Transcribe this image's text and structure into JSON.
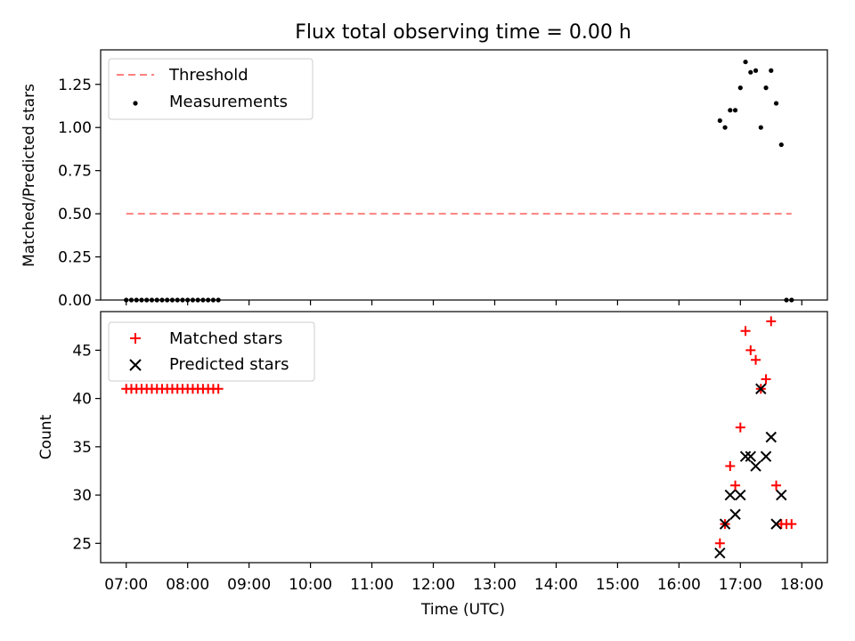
{
  "figure": {
    "title": "Flux total observing time = 0.00 h"
  },
  "chart_data": [
    {
      "type": "scatter",
      "ylabel": "Matched/Predicted stars",
      "ylim": [
        0,
        1.45
      ],
      "yticks": [
        0.0,
        0.25,
        0.5,
        0.75,
        1.0,
        1.25
      ],
      "ytick_labels": [
        "0.00",
        "0.25",
        "0.50",
        "0.75",
        "1.00",
        "1.25"
      ],
      "legend": {
        "placement": "top-left",
        "entries": [
          "Threshold",
          "Measurements"
        ]
      },
      "threshold": {
        "name": "Threshold",
        "y": 0.5,
        "x_start": "07:00",
        "x_end": "17:50",
        "color": "#ff8080"
      },
      "series": [
        {
          "name": "Measurements",
          "color": "#000000",
          "x": [
            "07:00",
            "07:05",
            "07:10",
            "07:15",
            "07:20",
            "07:25",
            "07:30",
            "07:35",
            "07:40",
            "07:45",
            "07:50",
            "07:55",
            "08:00",
            "08:05",
            "08:10",
            "08:15",
            "08:20",
            "08:25",
            "08:30",
            "16:40",
            "16:45",
            "16:50",
            "16:55",
            "17:00",
            "17:05",
            "17:10",
            "17:15",
            "17:20",
            "17:25",
            "17:30",
            "17:35",
            "17:40",
            "17:45",
            "17:50"
          ],
          "y": [
            0,
            0,
            0,
            0,
            0,
            0,
            0,
            0,
            0,
            0,
            0,
            0,
            0,
            0,
            0,
            0,
            0,
            0,
            0,
            1.04,
            1.0,
            1.1,
            1.1,
            1.23,
            1.38,
            1.32,
            1.33,
            1.0,
            1.23,
            1.33,
            1.14,
            0.9,
            0,
            0
          ]
        }
      ]
    },
    {
      "type": "scatter",
      "ylabel": "Count",
      "xlabel": "Time (UTC)",
      "ylim": [
        23,
        49
      ],
      "yticks": [
        25,
        30,
        35,
        40,
        45
      ],
      "ytick_labels": [
        "25",
        "30",
        "35",
        "40",
        "45"
      ],
      "xlim": [
        "06:35",
        "18:25"
      ],
      "xticks": [
        "07:00",
        "08:00",
        "09:00",
        "10:00",
        "11:00",
        "12:00",
        "13:00",
        "14:00",
        "15:00",
        "16:00",
        "17:00",
        "18:00"
      ],
      "legend": {
        "placement": "top-left",
        "entries": [
          "Matched stars",
          "Predicted stars"
        ]
      },
      "series": [
        {
          "name": "Matched stars",
          "marker": "plus",
          "color": "#ff0000",
          "x": [
            "07:00",
            "07:05",
            "07:10",
            "07:15",
            "07:20",
            "07:25",
            "07:30",
            "07:35",
            "07:40",
            "07:45",
            "07:50",
            "07:55",
            "08:00",
            "08:05",
            "08:10",
            "08:15",
            "08:20",
            "08:25",
            "08:30",
            "16:40",
            "16:45",
            "16:50",
            "16:55",
            "17:00",
            "17:05",
            "17:10",
            "17:15",
            "17:20",
            "17:25",
            "17:30",
            "17:35",
            "17:40",
            "17:45",
            "17:50"
          ],
          "y": [
            41,
            41,
            41,
            41,
            41,
            41,
            41,
            41,
            41,
            41,
            41,
            41,
            41,
            41,
            41,
            41,
            41,
            41,
            41,
            25,
            27,
            33,
            31,
            37,
            47,
            45,
            44,
            41,
            42,
            48,
            31,
            27,
            27,
            27
          ]
        },
        {
          "name": "Predicted stars",
          "marker": "x",
          "color": "#000000",
          "x": [
            "16:40",
            "16:45",
            "16:50",
            "16:55",
            "17:00",
            "17:05",
            "17:10",
            "17:15",
            "17:20",
            "17:25",
            "17:30",
            "17:35",
            "17:40"
          ],
          "y": [
            24,
            27,
            30,
            28,
            30,
            34,
            34,
            33,
            41,
            34,
            36,
            27,
            30
          ]
        }
      ]
    }
  ]
}
